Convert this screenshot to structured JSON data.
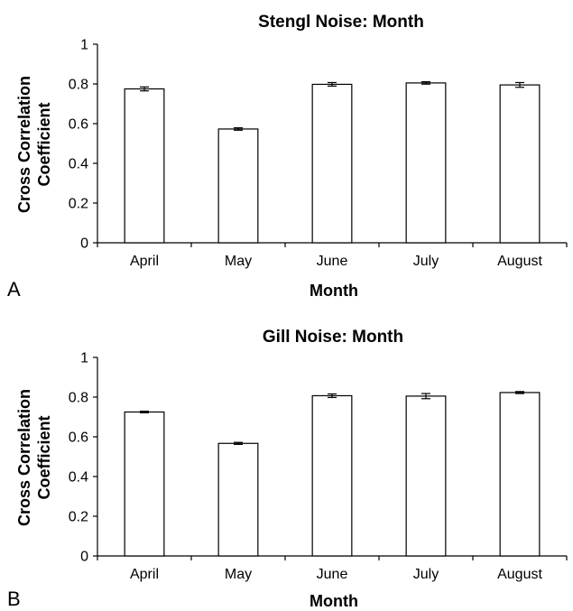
{
  "chart_data": [
    {
      "type": "bar",
      "panel": "A",
      "title": "Stengl Noise: Month",
      "xlabel": "Month",
      "ylabel_lines": [
        "Cross Correlation",
        "Coefficient"
      ],
      "categories": [
        "April",
        "May",
        "June",
        "July",
        "August"
      ],
      "values": [
        0.775,
        0.573,
        0.798,
        0.805,
        0.795
      ],
      "errors": [
        0.01,
        0.006,
        0.009,
        0.006,
        0.012
      ],
      "ylim": [
        0,
        1
      ],
      "yticks": [
        "0",
        "0.2",
        "0.4",
        "0.6",
        "0.8",
        "1"
      ],
      "grid": false
    },
    {
      "type": "bar",
      "panel": "B",
      "title": "Gill Noise: Month",
      "xlabel": "Month",
      "ylabel_lines": [
        "Cross Correlation",
        "Coefficient"
      ],
      "categories": [
        "April",
        "May",
        "June",
        "July",
        "August"
      ],
      "values": [
        0.725,
        0.567,
        0.807,
        0.805,
        0.823
      ],
      "errors": [
        0.004,
        0.005,
        0.009,
        0.013,
        0.005
      ],
      "ylim": [
        0,
        1
      ],
      "yticks": [
        "0",
        "0.2",
        "0.4",
        "0.6",
        "0.8",
        "1"
      ],
      "grid": false
    }
  ]
}
